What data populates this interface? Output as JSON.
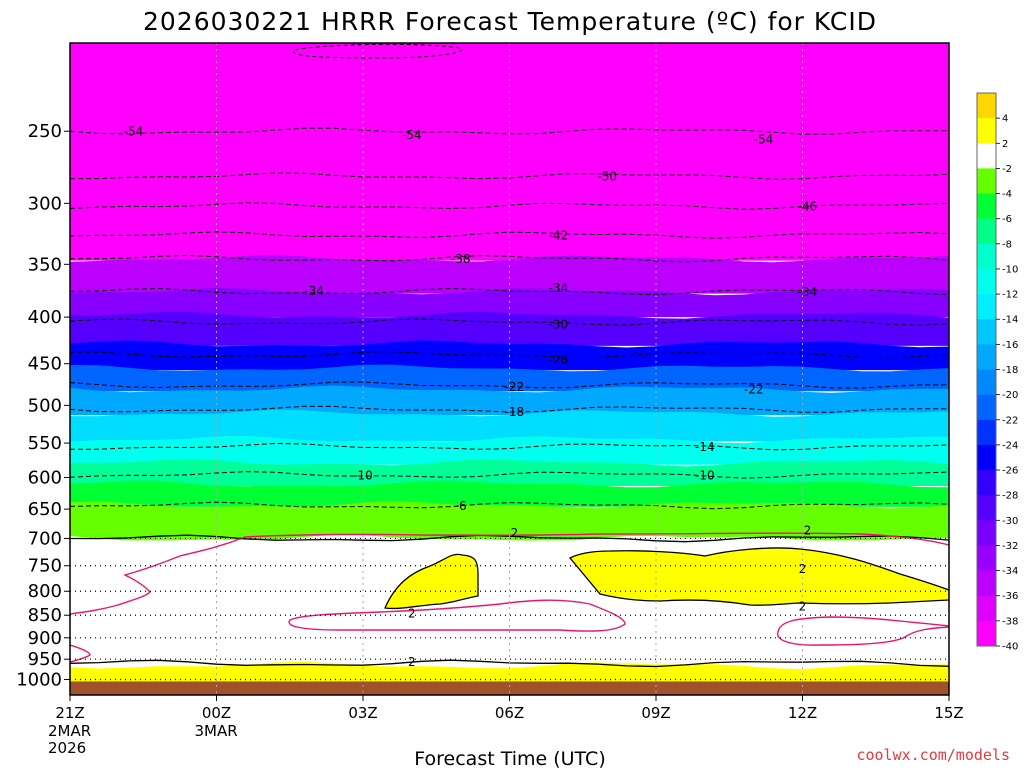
{
  "chart_data": {
    "type": "heatmap",
    "title": "2026030221 HRRR Forecast Temperature (ºC) for KCID",
    "xlabel": "Forecast Time (UTC)",
    "ylabel": "",
    "credit": "coolwx.com/models",
    "x_ticks": [
      {
        "hour": 0,
        "label": "21Z",
        "sub": [
          "2MAR",
          "2026"
        ]
      },
      {
        "hour": 3,
        "label": "00Z",
        "sub": [
          "3MAR"
        ]
      },
      {
        "hour": 6,
        "label": "03Z",
        "sub": []
      },
      {
        "hour": 9,
        "label": "06Z",
        "sub": []
      },
      {
        "hour": 12,
        "label": "09Z",
        "sub": []
      },
      {
        "hour": 15,
        "label": "12Z",
        "sub": []
      },
      {
        "hour": 18,
        "label": "15Z",
        "sub": []
      }
    ],
    "xlim": [
      0,
      18
    ],
    "y_ticks": [
      250,
      300,
      350,
      400,
      450,
      500,
      550,
      600,
      650,
      700,
      750,
      800,
      850,
      900,
      950,
      1000
    ],
    "ylim_hpa": [
      200,
      1040
    ],
    "ground_level_hpa": 1005,
    "colorbar": {
      "labels": [
        "4",
        "2",
        "-2",
        "-4",
        "-6",
        "-8",
        "-10",
        "-12",
        "-14",
        "-16",
        "-18",
        "-20",
        "-22",
        "-24",
        "-26",
        "-28",
        "-30",
        "-32",
        "-34",
        "-36",
        "-38",
        "-40"
      ],
      "bins": [
        {
          "label": "4",
          "color": "#ffd700"
        },
        {
          "label": "2",
          "color": "#ffff00"
        },
        {
          "label": "-2",
          "color": "#ffffff"
        },
        {
          "label": "-4",
          "color": "#66ff00"
        },
        {
          "label": "-6",
          "color": "#00ff33"
        },
        {
          "label": "-8",
          "color": "#00ff88"
        },
        {
          "label": "-10",
          "color": "#00ffcc"
        },
        {
          "label": "-12",
          "color": "#00ffee"
        },
        {
          "label": "-14",
          "color": "#00eeff"
        },
        {
          "label": "-16",
          "color": "#00c8ff"
        },
        {
          "label": "-18",
          "color": "#00a8ff"
        },
        {
          "label": "-20",
          "color": "#0088ff"
        },
        {
          "label": "-22",
          "color": "#0066ff"
        },
        {
          "label": "-24",
          "color": "#0033ff"
        },
        {
          "label": "-26",
          "color": "#0000ff"
        },
        {
          "label": "-28",
          "color": "#3300ff"
        },
        {
          "label": "-30",
          "color": "#5500ff"
        },
        {
          "label": "-32",
          "color": "#7700ff"
        },
        {
          "label": "-34",
          "color": "#9900ff"
        },
        {
          "label": "-36",
          "color": "#bb00ff"
        },
        {
          "label": "-38",
          "color": "#dd00ff"
        },
        {
          "label": "-40",
          "color": "#ff00ff"
        }
      ]
    },
    "temperature_profile": [
      {
        "temp": -56,
        "p_top": 200,
        "p_bottom": 345,
        "color": "#ff00ff"
      },
      {
        "temp": -38,
        "p_top": 345,
        "p_bottom": 375,
        "color": "#bb00ff"
      },
      {
        "temp": -34,
        "p_top": 375,
        "p_bottom": 398,
        "color": "#8800ff"
      },
      {
        "temp": -30,
        "p_top": 398,
        "p_bottom": 428,
        "color": "#5500ff"
      },
      {
        "temp": -26,
        "p_top": 428,
        "p_bottom": 455,
        "color": "#0000ff"
      },
      {
        "temp": -22,
        "p_top": 455,
        "p_bottom": 480,
        "color": "#0066ff"
      },
      {
        "temp": -18,
        "p_top": 480,
        "p_bottom": 510,
        "color": "#00a8ff"
      },
      {
        "temp": -14,
        "p_top": 510,
        "p_bottom": 545,
        "color": "#00ddff"
      },
      {
        "temp": -12,
        "p_top": 545,
        "p_bottom": 578,
        "color": "#00ffee"
      },
      {
        "temp": -10,
        "p_top": 578,
        "p_bottom": 610,
        "color": "#00ff99"
      },
      {
        "temp": -6,
        "p_top": 610,
        "p_bottom": 643,
        "color": "#00ff33"
      },
      {
        "temp": -4,
        "p_top": 643,
        "p_bottom": 700,
        "color": "#66ff00"
      },
      {
        "temp": 0,
        "p_top": 700,
        "p_bottom": 965,
        "color": "#ffffff"
      },
      {
        "temp": 2,
        "p_top": 965,
        "p_bottom": 1005,
        "color": "#ffff00"
      }
    ],
    "contours": [
      {
        "value": -54,
        "pressure": 250
      },
      {
        "value": -50,
        "pressure": 280
      },
      {
        "value": -46,
        "pressure": 302
      },
      {
        "value": -42,
        "pressure": 325
      },
      {
        "value": -38,
        "pressure": 345
      },
      {
        "value": -34,
        "pressure": 375
      },
      {
        "value": -30,
        "pressure": 405
      },
      {
        "value": -26,
        "pressure": 440
      },
      {
        "value": -22,
        "pressure": 475
      },
      {
        "value": -18,
        "pressure": 505
      },
      {
        "value": -14,
        "pressure": 555
      },
      {
        "value": -10,
        "pressure": 596
      },
      {
        "value": -6,
        "pressure": 644
      },
      {
        "value": 2,
        "pressure": 700
      },
      {
        "value": 2,
        "pressure": 960
      }
    ],
    "contour_labels": [
      {
        "text": "-54",
        "hour": 1.3,
        "pressure": 250
      },
      {
        "text": "-54",
        "hour": 7.0,
        "pressure": 252
      },
      {
        "text": "-54",
        "hour": 14.2,
        "pressure": 255
      },
      {
        "text": "-50",
        "hour": 11.0,
        "pressure": 280
      },
      {
        "text": "-46",
        "hour": 15.1,
        "pressure": 302
      },
      {
        "text": "-42",
        "hour": 10.0,
        "pressure": 325
      },
      {
        "text": "-38",
        "hour": 8.0,
        "pressure": 345
      },
      {
        "text": "-34",
        "hour": 5.0,
        "pressure": 374
      },
      {
        "text": "-34",
        "hour": 10.0,
        "pressure": 371
      },
      {
        "text": "-34",
        "hour": 15.1,
        "pressure": 375
      },
      {
        "text": "-30",
        "hour": 10.0,
        "pressure": 407
      },
      {
        "text": "-26",
        "hour": 10.0,
        "pressure": 445
      },
      {
        "text": "-22",
        "hour": 9.1,
        "pressure": 477
      },
      {
        "text": "-22",
        "hour": 14.0,
        "pressure": 480
      },
      {
        "text": "-18",
        "hour": 9.1,
        "pressure": 508
      },
      {
        "text": "-14",
        "hour": 13.0,
        "pressure": 555
      },
      {
        "text": "-10",
        "hour": 6.0,
        "pressure": 596
      },
      {
        "text": "-10",
        "hour": 13.0,
        "pressure": 596
      },
      {
        "text": "-6",
        "hour": 8.0,
        "pressure": 644
      },
      {
        "text": "2",
        "hour": 9.1,
        "pressure": 690
      },
      {
        "text": "2",
        "hour": 15.1,
        "pressure": 685
      },
      {
        "text": "2",
        "hour": 15.0,
        "pressure": 755
      },
      {
        "text": "2",
        "hour": 15.0,
        "pressure": 830
      },
      {
        "text": "2",
        "hour": 7.0,
        "pressure": 845
      },
      {
        "text": "2",
        "hour": 7.0,
        "pressure": 955
      }
    ]
  }
}
